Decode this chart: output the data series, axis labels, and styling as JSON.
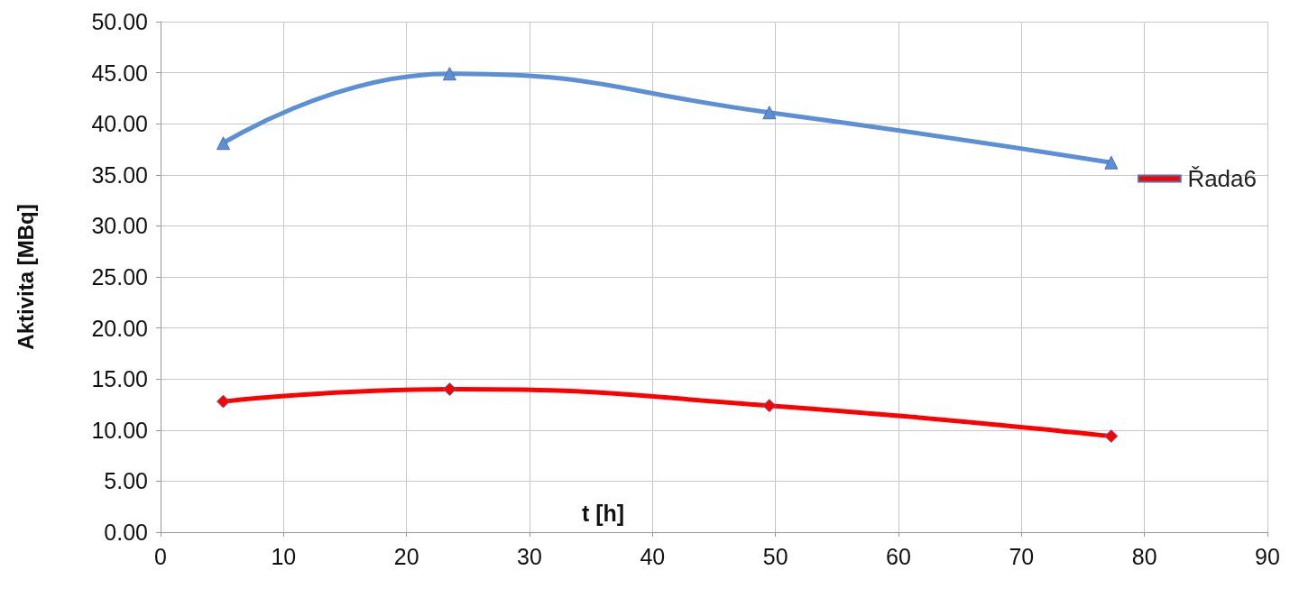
{
  "chart_data": {
    "type": "line",
    "xlabel": "t [h]",
    "ylabel": "Aktivita [MBq]",
    "xlim": [
      0,
      90
    ],
    "xticks": [
      0,
      10,
      20,
      30,
      40,
      50,
      60,
      70,
      80,
      90
    ],
    "ylim": [
      0,
      50
    ],
    "yticks": [
      {
        "value": 0,
        "label": "0.00"
      },
      {
        "value": 5,
        "label": "5.00"
      },
      {
        "value": 10,
        "label": "10.00"
      },
      {
        "value": 15,
        "label": "15.00"
      },
      {
        "value": 20,
        "label": "20.00"
      },
      {
        "value": 25,
        "label": "25.00"
      },
      {
        "value": 30,
        "label": "30.00"
      },
      {
        "value": 35,
        "label": "35.00"
      },
      {
        "value": 40,
        "label": "40.00"
      },
      {
        "value": 45,
        "label": "45.00"
      },
      {
        "value": 50,
        "label": "50.00"
      }
    ],
    "x": [
      5.1,
      23.5,
      49.5,
      77.3
    ],
    "series": [
      {
        "color": "#5b8fd6",
        "marker": "triangle",
        "values": [
          38.1,
          44.9,
          41.1,
          36.2
        ]
      },
      {
        "name": "Řada6",
        "color": "#ff0000",
        "marker": "diamond",
        "values": [
          12.8,
          14.0,
          12.4,
          9.4
        ]
      }
    ],
    "grid": true,
    "legend": "right",
    "line_style": "solid"
  }
}
